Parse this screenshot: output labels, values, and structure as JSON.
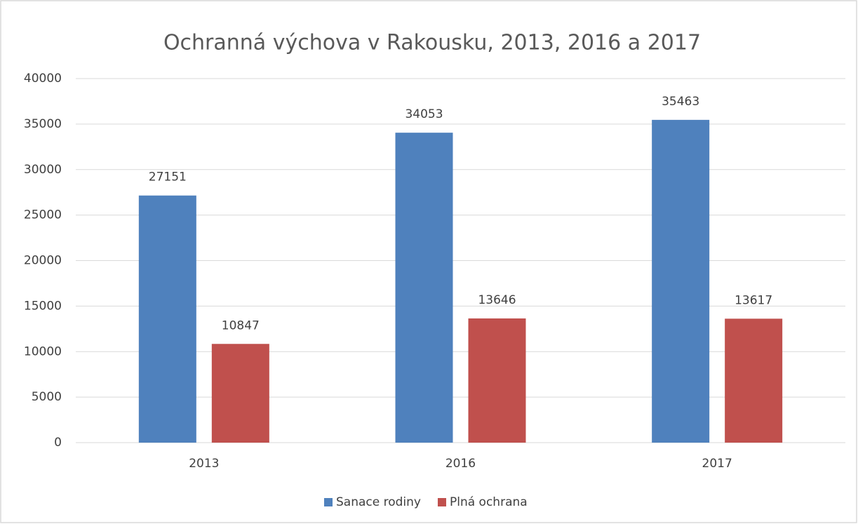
{
  "chart_data": {
    "type": "bar",
    "title": "Ochranná výchova v Rakousku, 2013, 2016 a 2017",
    "categories": [
      "2013",
      "2016",
      "2017"
    ],
    "series": [
      {
        "name": "Sanace rodiny",
        "color": "#4f81bd",
        "values": [
          27151,
          34053,
          35463
        ]
      },
      {
        "name": "Plná ochrana",
        "color": "#c0504d",
        "values": [
          10847,
          13646,
          13617
        ]
      }
    ],
    "ylim": [
      0,
      40000
    ],
    "yticks": [
      0,
      5000,
      10000,
      15000,
      20000,
      25000,
      30000,
      35000,
      40000
    ],
    "grid": true,
    "legend": "bottom"
  }
}
